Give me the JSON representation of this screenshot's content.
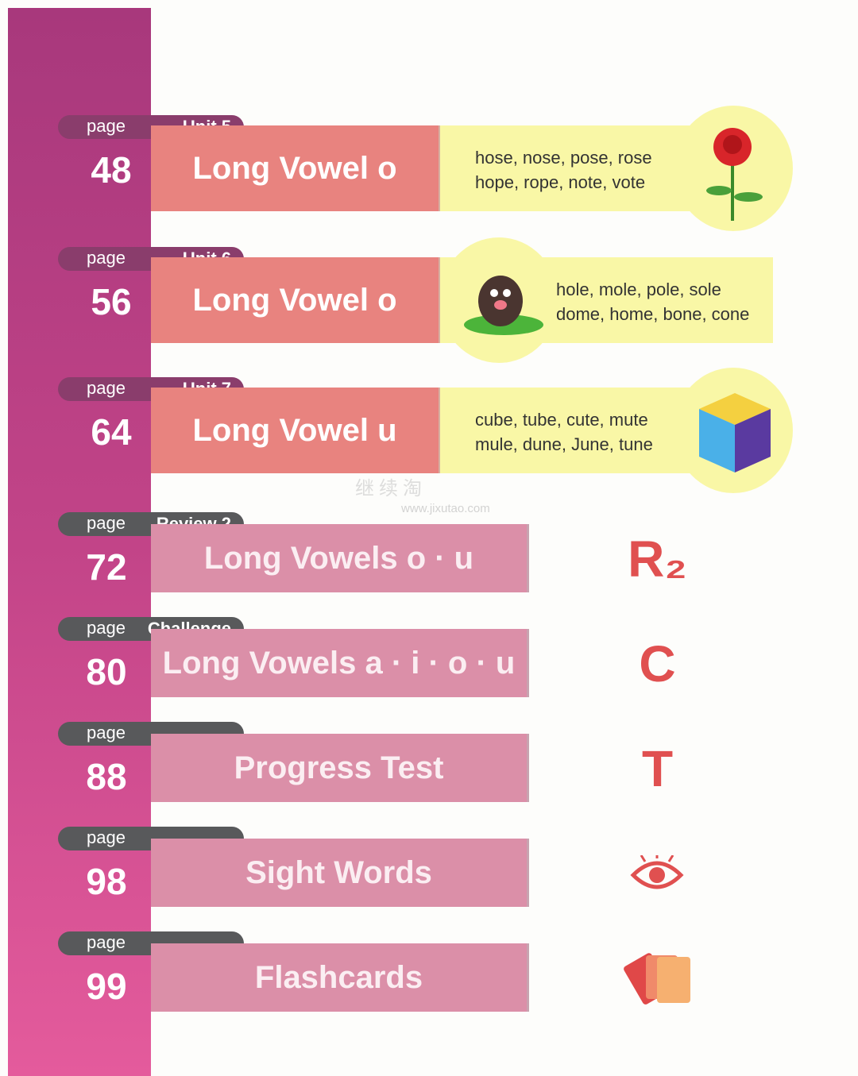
{
  "page_label": "page",
  "units": [
    {
      "page": "48",
      "unit": "Unit 5",
      "title": "Long Vowel o",
      "words": [
        "hose, nose, pose, rose",
        "hope, rope, note, vote"
      ],
      "icon": "rose-icon"
    },
    {
      "page": "56",
      "unit": "Unit 6",
      "title": "Long Vowel o",
      "words": [
        "hole, mole, pole, sole",
        "dome, home, bone, cone"
      ],
      "icon": "mole-icon"
    },
    {
      "page": "64",
      "unit": "Unit 7",
      "title": "Long Vowel u",
      "words": [
        "cube, tube, cute, mute",
        "mule, dune, June, tune"
      ],
      "icon": "cube-icon"
    }
  ],
  "sections": [
    {
      "page": "72",
      "label": "Review 2",
      "title": "Long Vowels o · u",
      "icon_text": "R₂"
    },
    {
      "page": "80",
      "label": "Challenge",
      "title": "Long Vowels a · i · o · u",
      "icon_text": "C"
    },
    {
      "page": "88",
      "label": "",
      "title": "Progress Test",
      "icon_text": "T"
    },
    {
      "page": "98",
      "label": "",
      "title": "Sight Words",
      "icon": "eye-icon"
    },
    {
      "page": "99",
      "label": "",
      "title": "Flashcards",
      "icon": "flashcards-icon"
    }
  ],
  "watermark": {
    "cn": "继续淘",
    "url": "www.jixutao.com"
  },
  "colors": {
    "sidebar": "#b23e82",
    "unit_bar": "#e8837f",
    "review_bar": "#db8fa8",
    "yellow": "#f9f7a6",
    "icon_red": "#e05050"
  }
}
